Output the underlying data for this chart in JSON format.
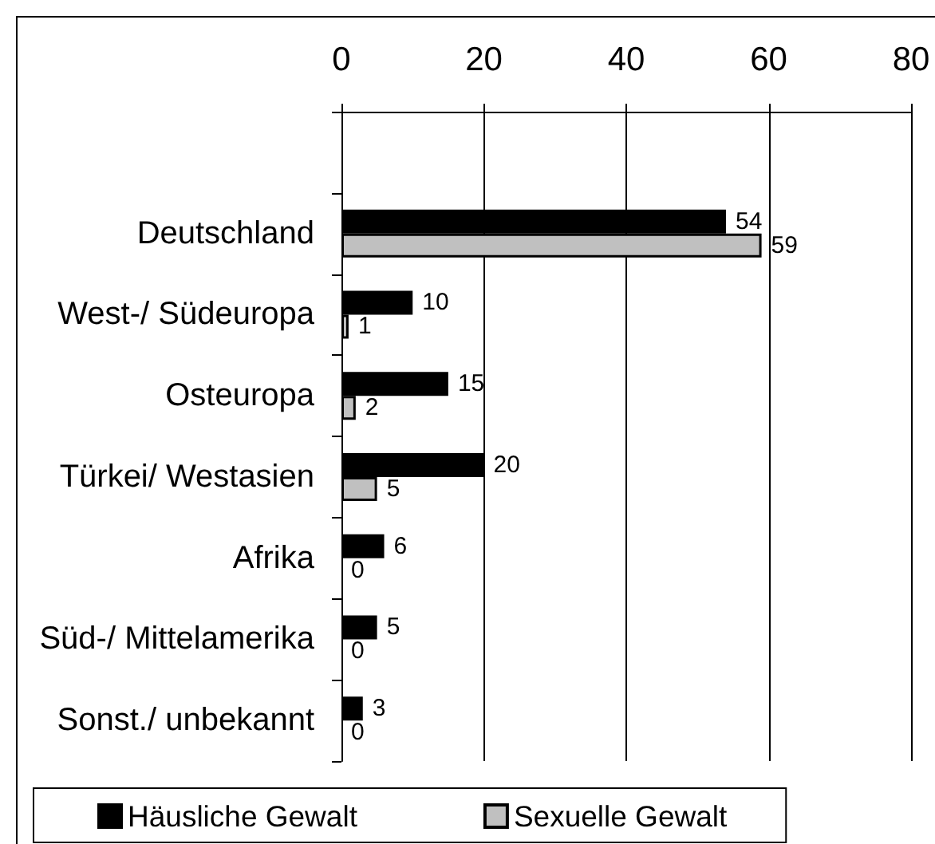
{
  "chart_data": {
    "type": "bar",
    "orientation": "horizontal",
    "categories": [
      null,
      "Deutschland",
      "West-/ Südeuropa",
      "Osteuropa",
      "Türkei/ Westasien",
      "Afrika",
      "Süd-/ Mittelamerika",
      "Sonst./ unbekannt"
    ],
    "series": [
      {
        "name": "Häusliche Gewalt",
        "color": "#000000",
        "values": [
          null,
          54,
          10,
          15,
          20,
          6,
          5,
          3
        ]
      },
      {
        "name": "Sexuelle Gewalt",
        "color": "#c0c0c0",
        "values": [
          null,
          59,
          1,
          2,
          5,
          0,
          0,
          0
        ]
      }
    ],
    "xlim": [
      0,
      80
    ],
    "xticks": [
      0,
      20,
      40,
      60,
      80
    ],
    "grid": "x",
    "legend": "bottom",
    "data_labels": true
  }
}
